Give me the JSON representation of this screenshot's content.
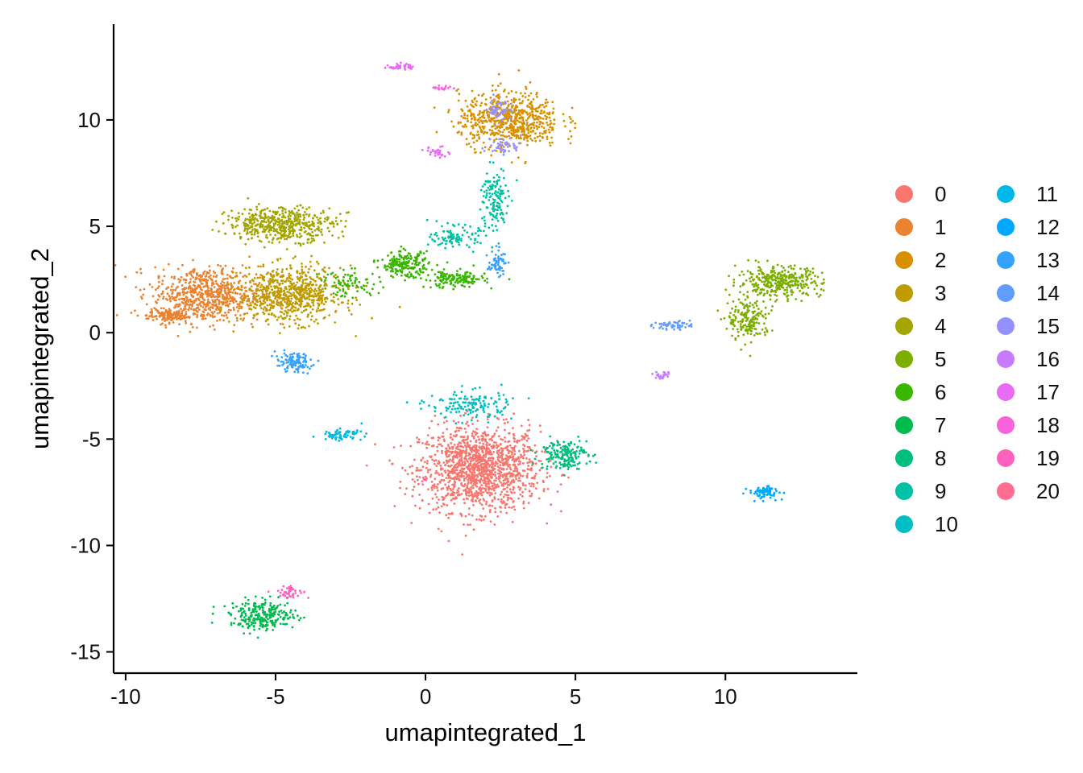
{
  "chart_data": {
    "type": "scatter",
    "xlabel": "umapintegrated_1",
    "ylabel": "umapintegrated_2",
    "xlim": [
      -10.4,
      14.4
    ],
    "ylim": [
      -16.0,
      14.5
    ],
    "x_ticks": [
      -10,
      -5,
      0,
      5,
      10
    ],
    "y_ticks": [
      -15,
      -10,
      -5,
      0,
      5,
      10
    ],
    "grid": false,
    "legend_position": "right",
    "legend_columns": 2,
    "clusters": [
      {
        "name": "0",
        "color": "#F8766D",
        "blobs": [
          {
            "x": 1.8,
            "y": -6.4,
            "rx": 2.0,
            "ry": 2.0,
            "n": 1400
          }
        ]
      },
      {
        "name": "1",
        "color": "#EA8331",
        "blobs": [
          {
            "x": -7.3,
            "y": 1.8,
            "rx": 1.8,
            "ry": 1.3,
            "n": 700
          },
          {
            "x": -8.6,
            "y": 0.8,
            "rx": 0.7,
            "ry": 0.3,
            "n": 120
          }
        ]
      },
      {
        "name": "2",
        "color": "#D89000",
        "blobs": [
          {
            "x": 2.8,
            "y": 10.0,
            "rx": 1.7,
            "ry": 1.3,
            "n": 650
          }
        ]
      },
      {
        "name": "3",
        "color": "#C09B00",
        "blobs": [
          {
            "x": -4.5,
            "y": 1.8,
            "rx": 1.7,
            "ry": 1.3,
            "n": 700
          }
        ]
      },
      {
        "name": "4",
        "color": "#A3A500",
        "blobs": [
          {
            "x": -4.8,
            "y": 5.1,
            "rx": 1.8,
            "ry": 0.8,
            "n": 500
          }
        ]
      },
      {
        "name": "5",
        "color": "#7CAE00",
        "blobs": [
          {
            "x": 11.8,
            "y": 2.4,
            "rx": 1.4,
            "ry": 0.7,
            "n": 350
          },
          {
            "x": 10.8,
            "y": 0.6,
            "rx": 0.7,
            "ry": 1.0,
            "n": 180
          }
        ]
      },
      {
        "name": "6",
        "color": "#39B600",
        "blobs": [
          {
            "x": -0.7,
            "y": 3.2,
            "rx": 0.8,
            "ry": 0.6,
            "n": 200
          },
          {
            "x": 1.0,
            "y": 2.5,
            "rx": 1.0,
            "ry": 0.4,
            "n": 160
          },
          {
            "x": -2.5,
            "y": 2.3,
            "rx": 1.0,
            "ry": 0.6,
            "n": 80
          }
        ]
      },
      {
        "name": "7",
        "color": "#00BB4E",
        "blobs": [
          {
            "x": -5.4,
            "y": -13.3,
            "rx": 1.1,
            "ry": 0.7,
            "n": 260
          }
        ]
      },
      {
        "name": "8",
        "color": "#00BF7D",
        "blobs": [
          {
            "x": 4.6,
            "y": -5.7,
            "rx": 0.8,
            "ry": 0.7,
            "n": 180
          }
        ]
      },
      {
        "name": "9",
        "color": "#00C1A3",
        "blobs": [
          {
            "x": 2.3,
            "y": 6.2,
            "rx": 0.45,
            "ry": 1.6,
            "n": 140
          },
          {
            "x": 1.0,
            "y": 4.5,
            "rx": 0.8,
            "ry": 0.5,
            "n": 100
          }
        ]
      },
      {
        "name": "10",
        "color": "#00BFC4",
        "blobs": [
          {
            "x": 1.5,
            "y": -3.4,
            "rx": 1.4,
            "ry": 0.7,
            "n": 150
          }
        ]
      },
      {
        "name": "11",
        "color": "#00B8E7",
        "blobs": [
          {
            "x": -2.8,
            "y": -4.8,
            "rx": 0.7,
            "ry": 0.25,
            "n": 70
          }
        ]
      },
      {
        "name": "12",
        "color": "#00A9FF",
        "blobs": [
          {
            "x": 11.3,
            "y": -7.5,
            "rx": 0.5,
            "ry": 0.3,
            "n": 80
          }
        ]
      },
      {
        "name": "13",
        "color": "#35A2FF",
        "blobs": [
          {
            "x": -4.4,
            "y": -1.4,
            "rx": 0.6,
            "ry": 0.45,
            "n": 110
          },
          {
            "x": 2.4,
            "y": 3.3,
            "rx": 0.3,
            "ry": 0.6,
            "n": 60
          }
        ]
      },
      {
        "name": "14",
        "color": "#619CFF",
        "blobs": [
          {
            "x": 8.2,
            "y": 0.35,
            "rx": 0.6,
            "ry": 0.2,
            "n": 55
          }
        ]
      },
      {
        "name": "15",
        "color": "#9590FF",
        "blobs": [
          {
            "x": 2.5,
            "y": 10.5,
            "rx": 0.4,
            "ry": 0.6,
            "n": 50
          },
          {
            "x": 2.6,
            "y": 8.8,
            "rx": 0.6,
            "ry": 0.4,
            "n": 45
          }
        ]
      },
      {
        "name": "16",
        "color": "#C77CFF",
        "blobs": [
          {
            "x": 7.9,
            "y": -2.0,
            "rx": 0.3,
            "ry": 0.2,
            "n": 25
          }
        ]
      },
      {
        "name": "17",
        "color": "#E76BF3",
        "blobs": [
          {
            "x": -0.8,
            "y": 12.5,
            "rx": 0.4,
            "ry": 0.15,
            "n": 40
          },
          {
            "x": 0.4,
            "y": 8.5,
            "rx": 0.4,
            "ry": 0.25,
            "n": 30
          }
        ]
      },
      {
        "name": "18",
        "color": "#FA62DB",
        "blobs": [
          {
            "x": 0.6,
            "y": 11.5,
            "rx": 0.4,
            "ry": 0.1,
            "n": 20
          }
        ]
      },
      {
        "name": "19",
        "color": "#FF62BC",
        "blobs": [
          {
            "x": -4.5,
            "y": -12.2,
            "rx": 0.5,
            "ry": 0.3,
            "n": 45
          }
        ]
      },
      {
        "name": "20",
        "color": "#FF6C91",
        "blobs": [
          {
            "x": 0.0,
            "y": -6.9,
            "rx": 0.1,
            "ry": 0.1,
            "n": 8
          }
        ]
      }
    ]
  }
}
